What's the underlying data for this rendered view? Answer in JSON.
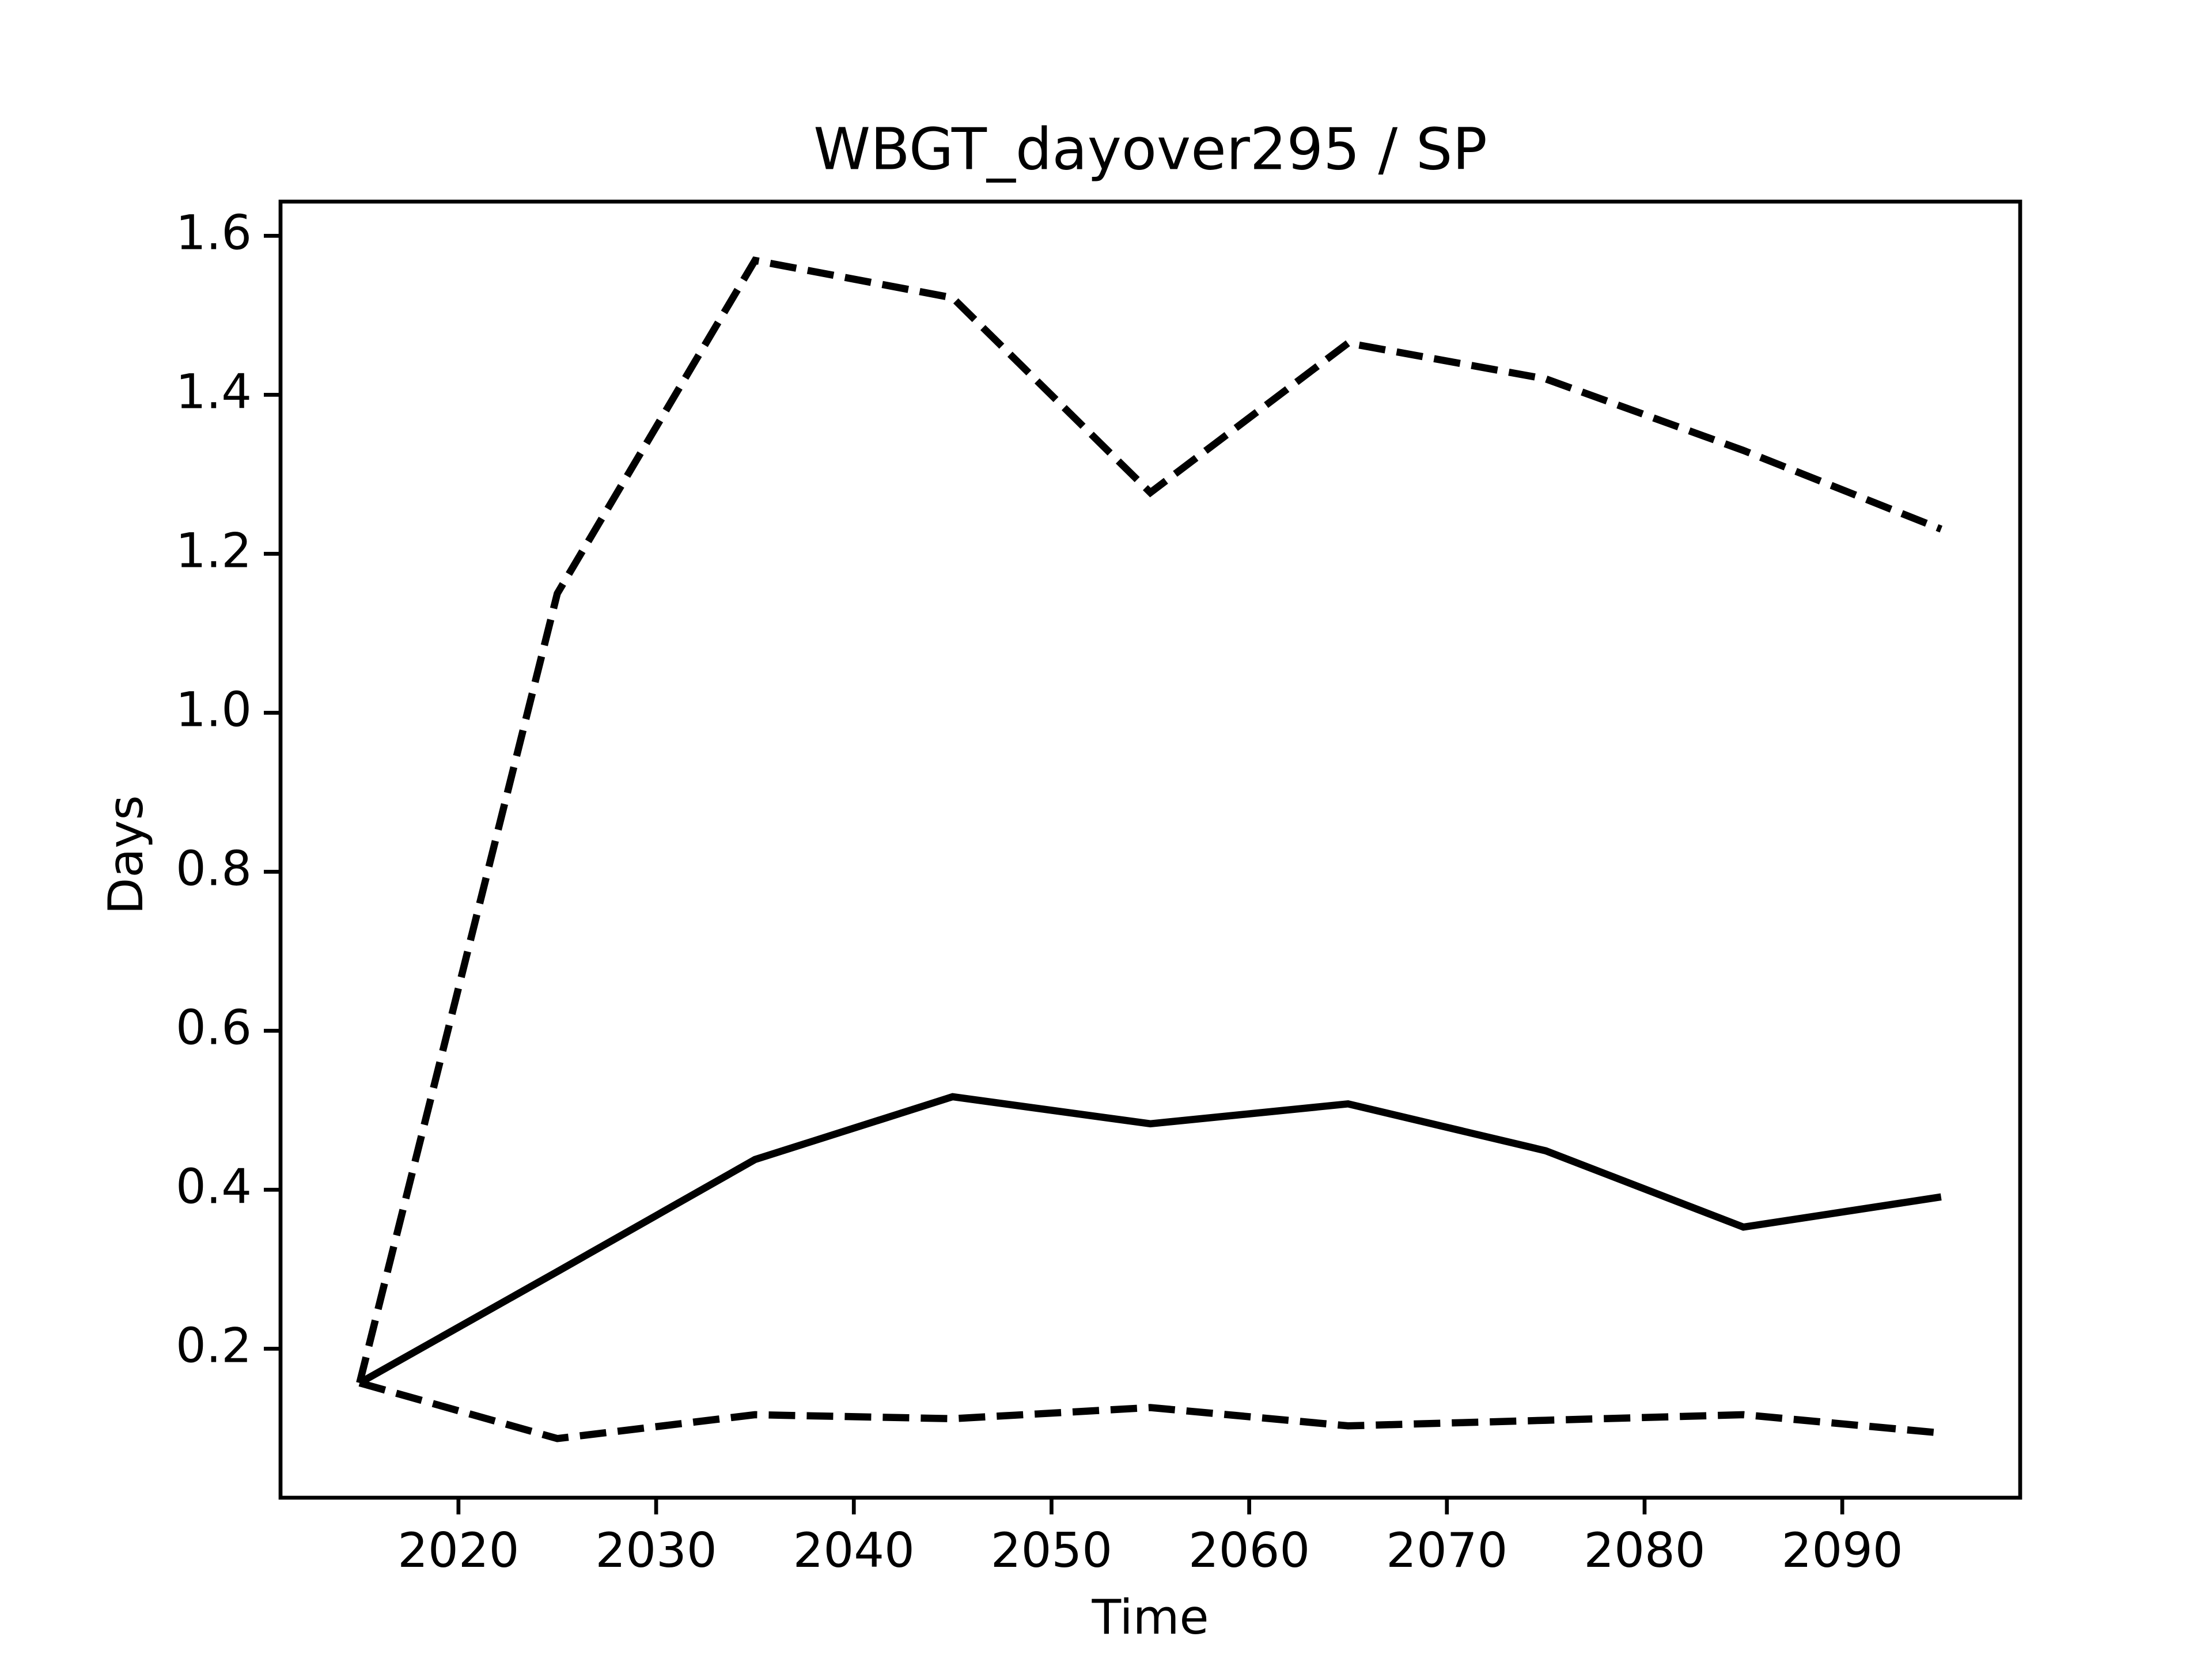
{
  "chart_data": {
    "type": "line",
    "title": "WBGT_dayover295 / SP",
    "x_label": "Time",
    "y_label": "Days",
    "x": [
      2015,
      2025,
      2035,
      2045,
      2055,
      2065,
      2075,
      2085,
      2095
    ],
    "series": [
      {
        "color": "#000000",
        "dashed": false,
        "values": [
          0.157,
          0.297,
          0.438,
          0.517,
          0.483,
          0.508,
          0.449,
          0.353,
          0.391
        ]
      },
      {
        "color": "#000000",
        "dashed": true,
        "values": [
          0.157,
          1.15,
          1.569,
          1.522,
          1.277,
          1.465,
          1.42,
          1.33,
          1.231
        ]
      },
      {
        "color": "#000000",
        "dashed": true,
        "values": [
          0.157,
          0.087,
          0.117,
          0.112,
          0.126,
          0.103,
          0.11,
          0.117,
          0.094
        ]
      }
    ],
    "xlim": [
      2011,
      2099
    ],
    "xticks": [
      2020,
      2030,
      2040,
      2050,
      2060,
      2070,
      2080,
      2090
    ],
    "ylim": [
      0.0126,
      1.643
    ],
    "yticks": [
      {
        "value": 0.2,
        "label": "0.2"
      },
      {
        "value": 0.4,
        "label": "0.4"
      },
      {
        "value": 0.6,
        "label": "0.6"
      },
      {
        "value": 0.8,
        "label": "0.8"
      },
      {
        "value": 1.0,
        "label": "1.0"
      },
      {
        "value": 1.2,
        "label": "1.2"
      },
      {
        "value": 1.4,
        "label": "1.4"
      },
      {
        "value": 1.6,
        "label": "1.6"
      }
    ],
    "grid": false
  }
}
